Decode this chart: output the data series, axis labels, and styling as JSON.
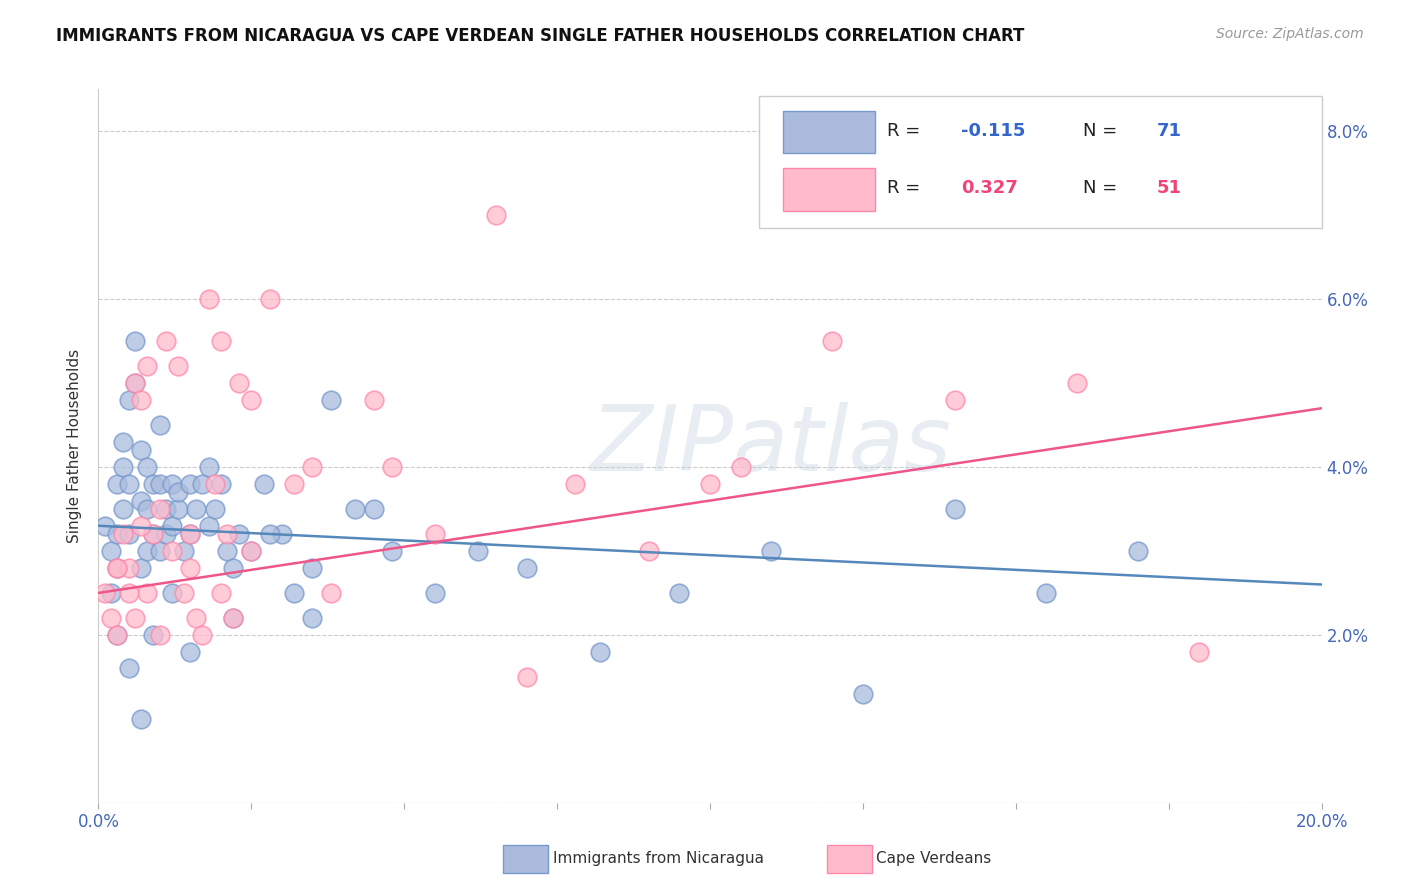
{
  "title": "IMMIGRANTS FROM NICARAGUA VS CAPE VERDEAN SINGLE FATHER HOUSEHOLDS CORRELATION CHART",
  "source": "Source: ZipAtlas.com",
  "ylabel": "Single Father Households",
  "yticks": [
    0.0,
    0.02,
    0.04,
    0.06,
    0.08
  ],
  "ytick_labels": [
    "",
    "2.0%",
    "4.0%",
    "6.0%",
    "8.0%"
  ],
  "xticks": [
    0.0,
    0.025,
    0.05,
    0.075,
    0.1,
    0.125,
    0.15,
    0.175,
    0.2
  ],
  "xtick_labels": [
    "0.0%",
    "",
    "",
    "",
    "",
    "",
    "",
    "",
    "20.0%"
  ],
  "xlim": [
    0.0,
    0.2
  ],
  "ylim": [
    0.0,
    0.085
  ],
  "blue_face": "#AABBDD",
  "blue_edge": "#7799CC",
  "pink_face": "#FFBBCC",
  "pink_edge": "#FF88AA",
  "blue_line": "#5588BB",
  "pink_line": "#EE5588",
  "blue_trend_y0": 0.033,
  "blue_trend_y1": 0.026,
  "pink_trend_y0": 0.025,
  "pink_trend_y1": 0.047,
  "blue_scatter_x": [
    0.001,
    0.002,
    0.002,
    0.003,
    0.003,
    0.003,
    0.004,
    0.004,
    0.004,
    0.005,
    0.005,
    0.005,
    0.006,
    0.006,
    0.007,
    0.007,
    0.007,
    0.008,
    0.008,
    0.008,
    0.009,
    0.009,
    0.01,
    0.01,
    0.01,
    0.011,
    0.011,
    0.012,
    0.012,
    0.013,
    0.013,
    0.014,
    0.015,
    0.015,
    0.016,
    0.017,
    0.018,
    0.019,
    0.02,
    0.021,
    0.022,
    0.023,
    0.025,
    0.027,
    0.03,
    0.032,
    0.035,
    0.038,
    0.042,
    0.048,
    0.055,
    0.062,
    0.07,
    0.082,
    0.095,
    0.11,
    0.125,
    0.14,
    0.155,
    0.17,
    0.003,
    0.005,
    0.007,
    0.009,
    0.012,
    0.015,
    0.018,
    0.022,
    0.028,
    0.035,
    0.045
  ],
  "blue_scatter_y": [
    0.033,
    0.03,
    0.025,
    0.038,
    0.032,
    0.028,
    0.04,
    0.035,
    0.043,
    0.038,
    0.032,
    0.048,
    0.055,
    0.05,
    0.036,
    0.042,
    0.028,
    0.035,
    0.04,
    0.03,
    0.038,
    0.032,
    0.045,
    0.038,
    0.03,
    0.035,
    0.032,
    0.038,
    0.033,
    0.035,
    0.037,
    0.03,
    0.038,
    0.032,
    0.035,
    0.038,
    0.033,
    0.035,
    0.038,
    0.03,
    0.028,
    0.032,
    0.03,
    0.038,
    0.032,
    0.025,
    0.028,
    0.048,
    0.035,
    0.03,
    0.025,
    0.03,
    0.028,
    0.018,
    0.025,
    0.03,
    0.013,
    0.035,
    0.025,
    0.03,
    0.02,
    0.016,
    0.01,
    0.02,
    0.025,
    0.018,
    0.04,
    0.022,
    0.032,
    0.022,
    0.035
  ],
  "pink_scatter_x": [
    0.001,
    0.002,
    0.003,
    0.003,
    0.004,
    0.005,
    0.006,
    0.006,
    0.007,
    0.008,
    0.008,
    0.009,
    0.01,
    0.011,
    0.012,
    0.013,
    0.014,
    0.015,
    0.016,
    0.017,
    0.018,
    0.019,
    0.02,
    0.021,
    0.022,
    0.023,
    0.025,
    0.028,
    0.032,
    0.038,
    0.045,
    0.055,
    0.065,
    0.078,
    0.09,
    0.105,
    0.12,
    0.14,
    0.16,
    0.18,
    0.003,
    0.005,
    0.007,
    0.01,
    0.015,
    0.02,
    0.025,
    0.035,
    0.048,
    0.07,
    0.1
  ],
  "pink_scatter_y": [
    0.025,
    0.022,
    0.028,
    0.02,
    0.032,
    0.028,
    0.05,
    0.022,
    0.048,
    0.025,
    0.052,
    0.032,
    0.02,
    0.055,
    0.03,
    0.052,
    0.025,
    0.032,
    0.022,
    0.02,
    0.06,
    0.038,
    0.025,
    0.032,
    0.022,
    0.05,
    0.03,
    0.06,
    0.038,
    0.025,
    0.048,
    0.032,
    0.07,
    0.038,
    0.03,
    0.04,
    0.055,
    0.048,
    0.05,
    0.018,
    0.028,
    0.025,
    0.033,
    0.035,
    0.028,
    0.055,
    0.048,
    0.04,
    0.04,
    0.015,
    0.038
  ]
}
